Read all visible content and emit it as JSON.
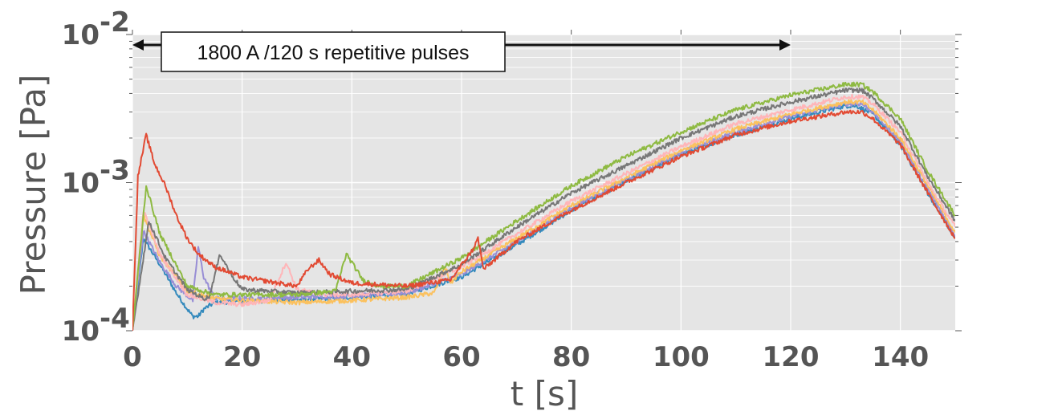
{
  "chart_data": {
    "type": "line",
    "xlabel": "t [s]",
    "ylabel": "Pressure [Pa]",
    "xlim": [
      0,
      150
    ],
    "ylim": [
      0.0001,
      0.01
    ],
    "yscale": "log",
    "grid": true,
    "x_ticks": [
      {
        "value": 0,
        "label": "0"
      },
      {
        "value": 20,
        "label": "20"
      },
      {
        "value": 40,
        "label": "40"
      },
      {
        "value": 60,
        "label": "60"
      },
      {
        "value": 80,
        "label": "80"
      },
      {
        "value": 100,
        "label": "100"
      },
      {
        "value": 120,
        "label": "120"
      },
      {
        "value": 140,
        "label": "140"
      }
    ],
    "y_ticks": [
      {
        "value": 0.0001,
        "base": "10",
        "exp": "-4"
      },
      {
        "value": 0.001,
        "base": "10",
        "exp": "-3"
      },
      {
        "value": 0.01,
        "base": "10",
        "exp": "-2"
      }
    ],
    "annotation": {
      "text": "1800 A /120 s repetitive pulses",
      "x_start": 0,
      "x_end": 120,
      "y": 0.0085
    },
    "series": [
      {
        "color": "#348ABD",
        "x": [
          0,
          2,
          5,
          8,
          10,
          11,
          12,
          13,
          15,
          20,
          30,
          40,
          50,
          60,
          70,
          80,
          90,
          100,
          110,
          120,
          130,
          132,
          135,
          140,
          145,
          150
        ],
        "y": [
          0.0001,
          0.00042,
          0.00028,
          0.00018,
          0.00014,
          0.000125,
          0.000125,
          0.00014,
          0.000155,
          0.000158,
          0.000162,
          0.000168,
          0.000178,
          0.00023,
          0.00038,
          0.00065,
          0.00102,
          0.00155,
          0.0021,
          0.0027,
          0.0033,
          0.0033,
          0.0029,
          0.0018,
          0.00085,
          0.00042
        ]
      },
      {
        "color": "#988ED5",
        "x": [
          0,
          2,
          5,
          8,
          11,
          12,
          13,
          15,
          20,
          30,
          40,
          50,
          60,
          70,
          80,
          90,
          100,
          110,
          120,
          130,
          133,
          135,
          140,
          145,
          150
        ],
        "y": [
          0.0001,
          0.00047,
          0.00029,
          0.0002,
          0.00016,
          0.00037,
          0.00023,
          0.000165,
          0.000165,
          0.000168,
          0.000172,
          0.00018,
          0.00024,
          0.0004,
          0.00068,
          0.00105,
          0.0016,
          0.0022,
          0.0028,
          0.0034,
          0.0034,
          0.003,
          0.0019,
          0.0009,
          0.00044
        ]
      },
      {
        "color": "#FBC15E",
        "x": [
          0,
          2,
          5,
          10,
          15,
          20,
          30,
          40,
          50,
          55,
          57,
          58,
          60,
          70,
          80,
          90,
          100,
          110,
          120,
          130,
          133,
          135,
          140,
          145,
          150
        ],
        "y": [
          0.0001,
          0.0006,
          0.00032,
          0.000185,
          0.000165,
          0.00016,
          0.000155,
          0.00016,
          0.000168,
          0.00018,
          0.00027,
          0.00021,
          0.00025,
          0.00042,
          0.0007,
          0.00108,
          0.00165,
          0.0023,
          0.0029,
          0.0035,
          0.0035,
          0.0031,
          0.002,
          0.00095,
          0.00046
        ]
      },
      {
        "color": "#FFB5B8",
        "x": [
          0,
          2,
          5,
          10,
          15,
          20,
          25,
          28,
          30,
          35,
          40,
          50,
          60,
          70,
          80,
          90,
          100,
          110,
          120,
          130,
          133,
          135,
          140,
          145,
          150
        ],
        "y": [
          0.0001,
          0.00065,
          0.00033,
          0.000175,
          0.000155,
          0.00015,
          0.00016,
          0.00029,
          0.00019,
          0.000175,
          0.000175,
          0.000185,
          0.00027,
          0.00045,
          0.00075,
          0.00115,
          0.00175,
          0.0025,
          0.0031,
          0.0038,
          0.0038,
          0.0034,
          0.0022,
          0.001,
          0.0005
        ]
      },
      {
        "color": "#777777",
        "x": [
          0,
          3,
          6,
          10,
          13,
          14,
          16,
          18,
          20,
          30,
          40,
          50,
          60,
          70,
          80,
          90,
          100,
          110,
          120,
          130,
          133,
          135,
          140,
          145,
          150
        ],
        "y": [
          0.0001,
          0.00055,
          0.00031,
          0.00019,
          0.000165,
          0.00017,
          0.00033,
          0.00024,
          0.00019,
          0.00018,
          0.000185,
          0.00019,
          0.00028,
          0.0005,
          0.00085,
          0.0013,
          0.002,
          0.0028,
          0.0035,
          0.0042,
          0.0042,
          0.0037,
          0.0024,
          0.0011,
          0.00055
        ]
      },
      {
        "color": "#8EBA42",
        "x": [
          0,
          2.5,
          5,
          10,
          15,
          20,
          30,
          37,
          39,
          42,
          45,
          50,
          60,
          70,
          80,
          90,
          100,
          110,
          120,
          130,
          133,
          135,
          140,
          145,
          150
        ],
        "y": [
          0.0001,
          0.00095,
          0.00045,
          0.0002,
          0.000175,
          0.000175,
          0.000175,
          0.000185,
          0.00033,
          0.00022,
          0.0002,
          0.0002,
          0.00031,
          0.00055,
          0.00095,
          0.0015,
          0.0022,
          0.0031,
          0.0039,
          0.0046,
          0.0046,
          0.0041,
          0.0027,
          0.0012,
          0.0006
        ]
      },
      {
        "color": "#E24A33",
        "x": [
          0,
          1,
          2.5,
          4,
          6,
          8,
          10,
          12,
          15,
          20,
          30,
          32,
          34,
          36,
          40,
          50,
          58,
          62,
          63,
          64,
          70,
          80,
          90,
          100,
          110,
          120,
          130,
          133,
          135,
          140,
          145,
          150
        ],
        "y": [
          0.0001,
          0.0011,
          0.0021,
          0.00135,
          0.00095,
          0.0006,
          0.00042,
          0.00033,
          0.00027,
          0.00023,
          0.0002,
          0.00026,
          0.0003,
          0.00024,
          0.00021,
          0.0002,
          0.00022,
          0.00035,
          0.00042,
          0.00026,
          0.0004,
          0.00065,
          0.001,
          0.0015,
          0.0021,
          0.0026,
          0.003,
          0.003,
          0.0027,
          0.0018,
          0.00085,
          0.00042
        ]
      }
    ]
  }
}
